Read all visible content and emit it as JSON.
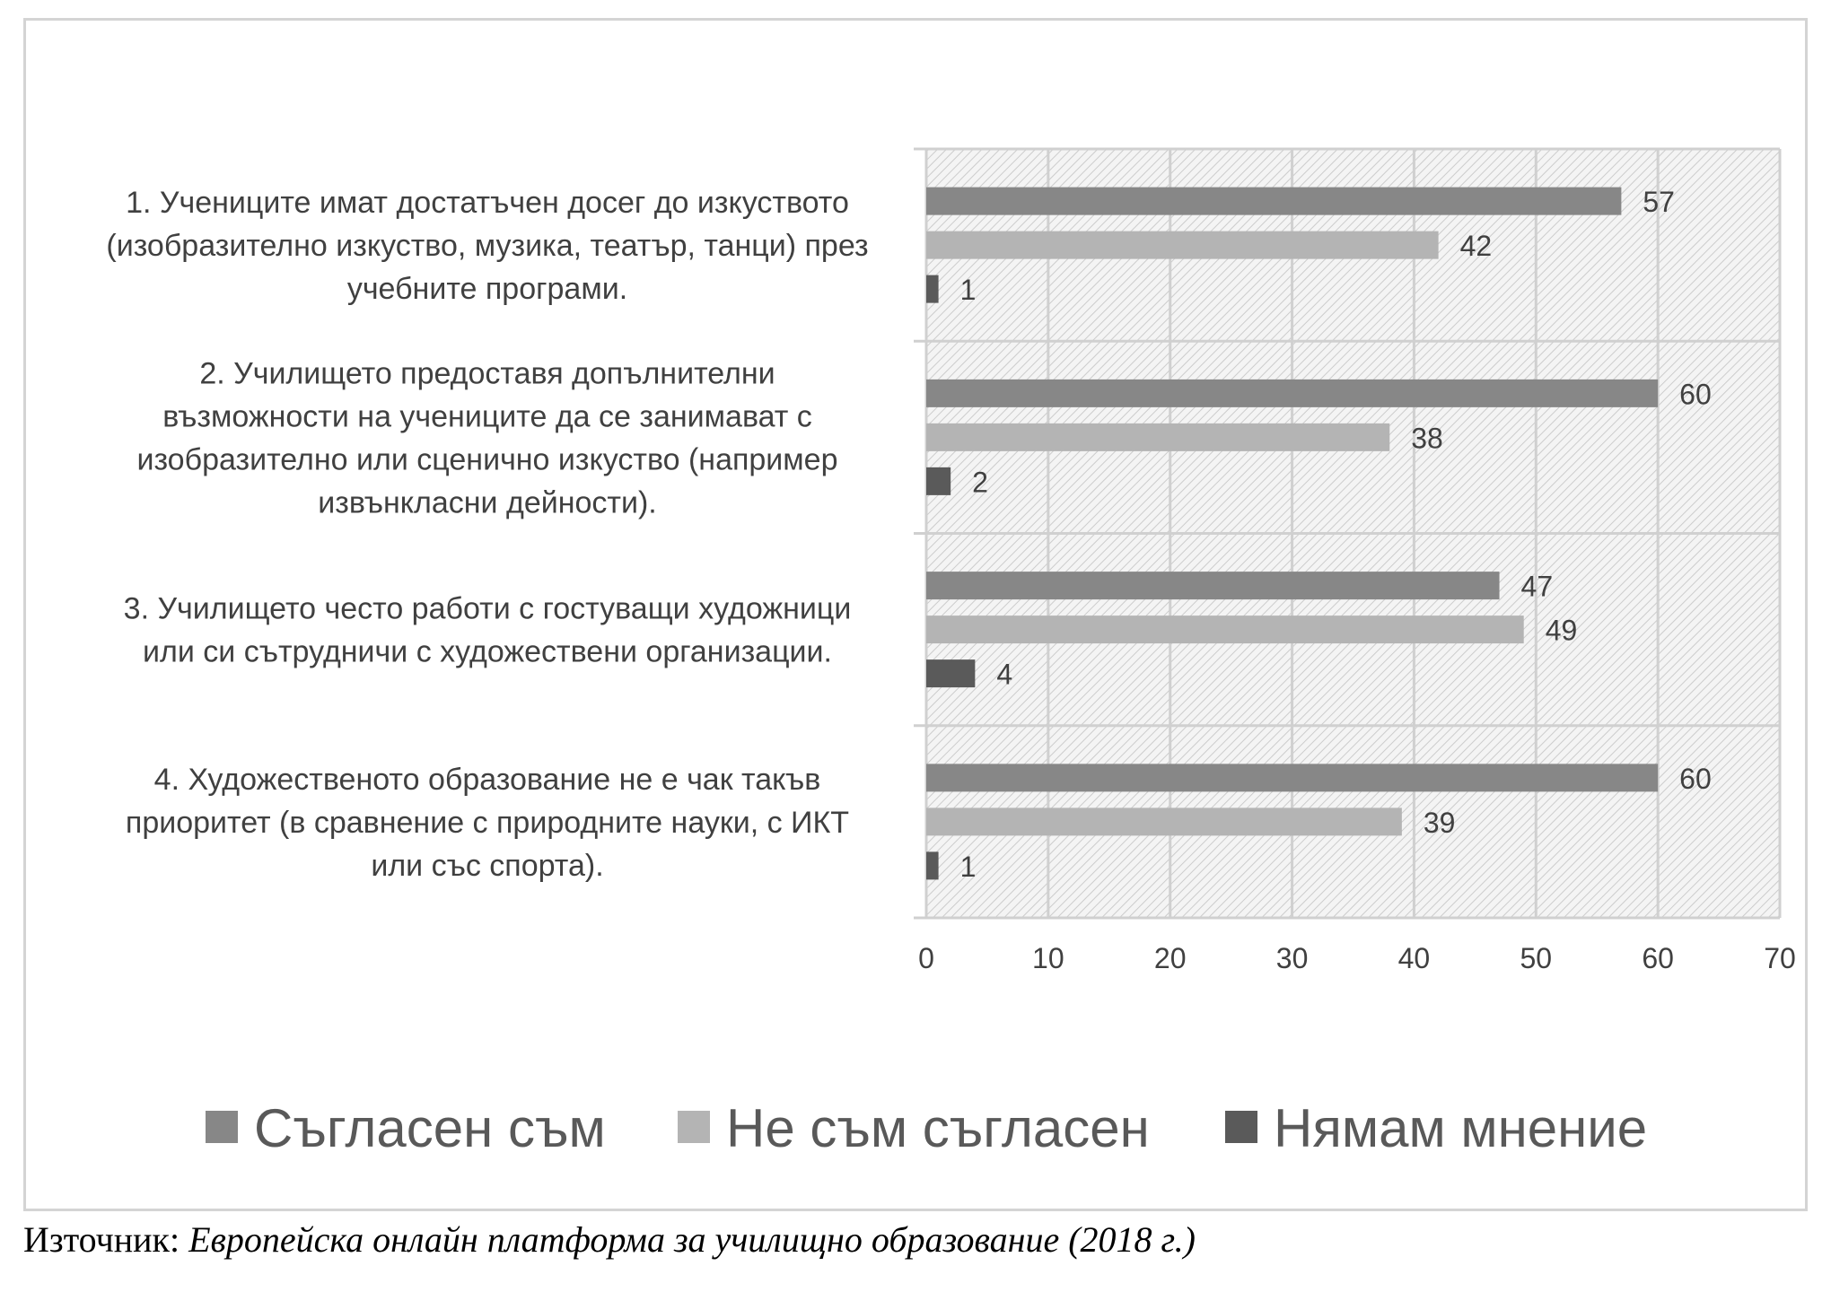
{
  "chart_data": {
    "type": "bar",
    "orientation": "horizontal",
    "categories": [
      [
        "1. Учениците имат достатъчен досег до изкуството",
        "(изобразително изкуство, музика, театър, танци) през",
        "учебните програми."
      ],
      [
        "2. Училището предоставя допълнителни",
        "възможности на учениците да се занимават с",
        "изобразително или сценично изкуство (например",
        "извънкласни дейности)."
      ],
      [
        "3. Училището често работи с гостуващи художници",
        "или си сътрудничи с художествени организации."
      ],
      [
        "4. Художественото образование не е чак такъв",
        "приоритет (в сравнение с природните науки, с ИКТ",
        "или със спорта)."
      ]
    ],
    "series": [
      {
        "name": "Съгласен съм",
        "color": "#878787",
        "values": [
          57,
          60,
          47,
          60
        ]
      },
      {
        "name": "Не съм съгласен",
        "color": "#b4b4b4",
        "values": [
          42,
          38,
          49,
          39
        ]
      },
      {
        "name": "Нямам мнение",
        "color": "#5a5a5a",
        "values": [
          1,
          2,
          4,
          1
        ]
      }
    ],
    "xlim": [
      0,
      70
    ],
    "xticks": [
      "0",
      "10",
      "20",
      "30",
      "40",
      "50",
      "60",
      "70"
    ],
    "grid": true,
    "plot_background": "hatched",
    "legend_position": "bottom",
    "data_labels": true
  },
  "source": {
    "prefix": "Източник: ",
    "title": "Европейска онлайн платформа за училищно образование (2018 г.)"
  }
}
